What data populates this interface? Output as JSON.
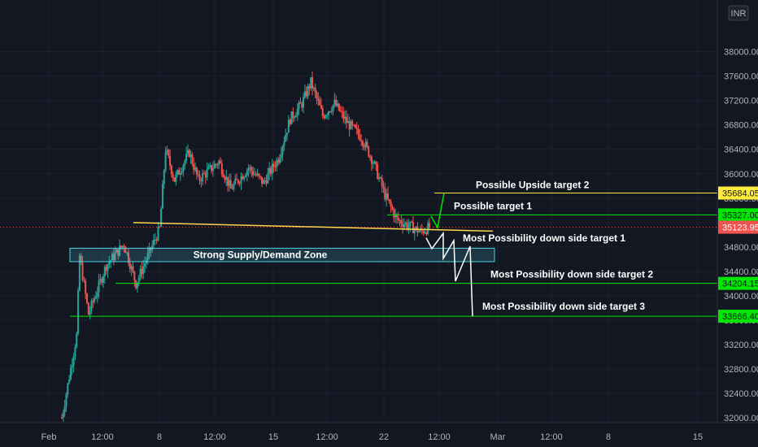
{
  "currency_badge": "INR",
  "chart_data": {
    "type": "candlestick",
    "y_axis": {
      "range": [
        31950,
        38500
      ],
      "ticks": [
        32000,
        32400,
        32800,
        33200,
        33600,
        34000,
        34400,
        34800,
        35200,
        35600,
        36000,
        36400,
        36800,
        37200,
        37600,
        38000
      ],
      "tick_labels": [
        "32000.00",
        "32400.00",
        "32800.00",
        "33200.00",
        "33600.00",
        "34000.00",
        "34400.00",
        "34800.00",
        "35200.00",
        "35600.00",
        "36000.00",
        "36400.00",
        "36800.00",
        "37200.00",
        "37600.00",
        "38000.00"
      ],
      "position": "right"
    },
    "x_axis": {
      "tick_labels": [
        "Feb",
        "12:00",
        "8",
        "12:00",
        "15",
        "12:00",
        "22",
        "12:00",
        "Mar",
        "12:00",
        "8",
        "15"
      ]
    },
    "price_series": {
      "colors": {
        "up": "#26a69a",
        "down": "#ef5350"
      },
      "keypoints": [
        {
          "t": 0,
          "v": 32000
        },
        {
          "t": 5,
          "v": 33350
        },
        {
          "t": 6,
          "v": 34650
        },
        {
          "t": 9,
          "v": 33700
        },
        {
          "t": 15,
          "v": 34500
        },
        {
          "t": 21,
          "v": 34850
        },
        {
          "t": 25,
          "v": 34200
        },
        {
          "t": 33,
          "v": 35100
        },
        {
          "t": 35,
          "v": 36400
        },
        {
          "t": 38,
          "v": 35900
        },
        {
          "t": 43,
          "v": 36350
        },
        {
          "t": 46,
          "v": 35900
        },
        {
          "t": 53,
          "v": 36200
        },
        {
          "t": 57,
          "v": 35750
        },
        {
          "t": 63,
          "v": 36100
        },
        {
          "t": 68,
          "v": 35850
        },
        {
          "t": 73,
          "v": 36250
        },
        {
          "t": 77,
          "v": 36900
        },
        {
          "t": 81,
          "v": 37150
        },
        {
          "t": 84,
          "v": 37500
        },
        {
          "t": 88,
          "v": 36950
        },
        {
          "t": 92,
          "v": 37150
        },
        {
          "t": 96,
          "v": 36850
        },
        {
          "t": 101,
          "v": 36600
        },
        {
          "t": 105,
          "v": 36200
        },
        {
          "t": 109,
          "v": 35650
        },
        {
          "t": 113,
          "v": 35250
        },
        {
          "t": 117,
          "v": 35150
        },
        {
          "t": 121,
          "v": 35050
        },
        {
          "t": 124,
          "v": 35120
        }
      ]
    },
    "current_price": {
      "label": "35123.95",
      "value": 35123.95,
      "color": "#ef5350"
    },
    "levels": [
      {
        "name": "Possible Upside target 2",
        "value": 35684.05,
        "label": "35684.05",
        "color": "#ffeb3b"
      },
      {
        "name": "Possible target 1",
        "value": 35327.0,
        "label": "35327.00",
        "color": "#00e600"
      },
      {
        "name": "Most Possibility down side target 2",
        "value": 34204.15,
        "label": "34204.15",
        "color": "#00e600"
      },
      {
        "name": "Most Possibility down side target 3",
        "value": 33666.4,
        "label": "33666.40",
        "color": "#00e600"
      }
    ],
    "annotations": [
      {
        "text": "Possible Upside target 2"
      },
      {
        "text": "Possible target 1"
      },
      {
        "text": "Most Possibility down side target 1"
      },
      {
        "text": "Most Possibility down side target 2"
      },
      {
        "text": "Most Possibility down side target 3"
      }
    ],
    "zone": {
      "label": "Strong Supply/Demand Zone",
      "top": 34780,
      "bottom": 34560,
      "color": "#4dd0e1"
    },
    "trendline": {
      "from": 35200,
      "to": 35060,
      "color": "#ffd54f"
    },
    "projection_down": [
      34950,
      34700,
      34950,
      34630,
      34900,
      34300,
      34850,
      33666
    ],
    "projection_up": [
      34950,
      35200,
      35684
    ]
  }
}
